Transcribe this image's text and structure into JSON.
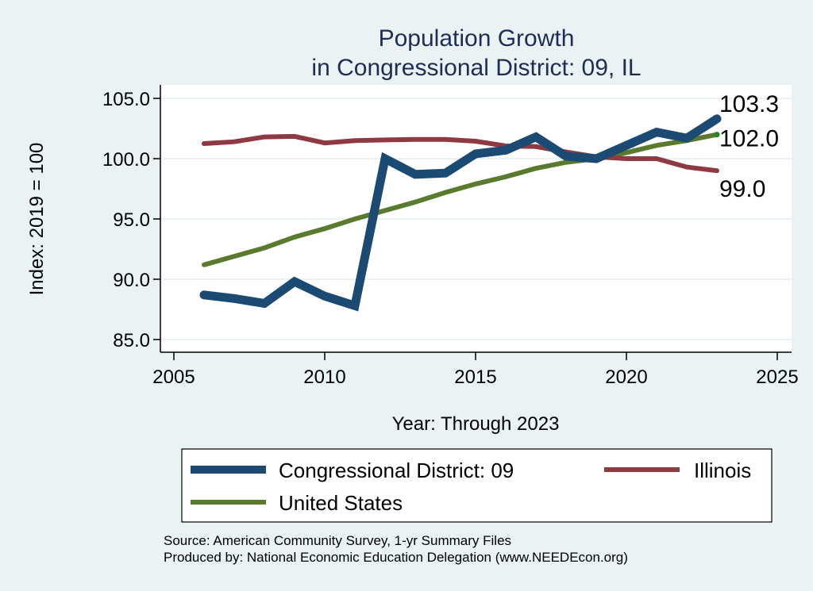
{
  "chart_data": {
    "type": "line",
    "title": [
      "Population Growth",
      "in Congressional District: 09, IL"
    ],
    "xlabel": "Year: Through 2023",
    "ylabel": "Index: 2019 = 100",
    "xlim": [
      2005,
      2025
    ],
    "ylim": [
      85,
      105
    ],
    "xticks": [
      2005,
      2010,
      2015,
      2020,
      2025
    ],
    "xtick_labels": [
      "2005",
      "2010",
      "2015",
      "2020",
      "2025"
    ],
    "yticks": [
      85,
      90,
      95,
      100,
      105
    ],
    "ytick_labels": [
      "85.0",
      "90.0",
      "95.0",
      "100.0",
      "105.0"
    ],
    "grid": "horizontal",
    "x": [
      2006,
      2007,
      2008,
      2009,
      2010,
      2011,
      2012,
      2013,
      2014,
      2015,
      2016,
      2017,
      2018,
      2019,
      2020,
      2021,
      2022,
      2023
    ],
    "series": [
      {
        "name": "Congressional District: 09",
        "color": "#1B4A73",
        "values": [
          88.7,
          88.4,
          88.0,
          89.8,
          88.6,
          87.8,
          100.0,
          98.7,
          98.8,
          100.4,
          100.7,
          101.8,
          100.2,
          100.0,
          101.1,
          102.2,
          101.7,
          103.3
        ],
        "end_label": "103.3"
      },
      {
        "name": "Illinois",
        "color": "#8F3A42",
        "values": [
          101.25,
          101.4,
          101.8,
          101.85,
          101.3,
          101.5,
          101.55,
          101.6,
          101.6,
          101.45,
          101.05,
          101.0,
          100.55,
          100.15,
          100.0,
          100.0,
          99.3,
          99.0
        ],
        "end_label": "99.0"
      },
      {
        "name": "United States",
        "color": "#5A7A2E",
        "values": [
          91.2,
          91.9,
          92.6,
          93.5,
          94.2,
          95.0,
          95.7,
          96.4,
          97.2,
          97.9,
          98.5,
          99.2,
          99.7,
          100.0,
          100.5,
          101.1,
          101.5,
          102.0
        ],
        "end_label": "102.0",
        "end_marker_color": "#1E8A1E"
      }
    ],
    "legend": {
      "placement": "bottom",
      "entries": [
        "Congressional District: 09",
        "Illinois",
        "United States"
      ]
    },
    "notes": [
      "Source: American Community Survey, 1-yr Summary Files",
      "Produced by: National Economic Education Delegation (www.NEEDEcon.org)"
    ],
    "colors": {
      "background": "#EAF2F3",
      "plot_background": "#FFFFFF",
      "gridline": "#EAF2F3",
      "title": "#1E2D55"
    }
  }
}
